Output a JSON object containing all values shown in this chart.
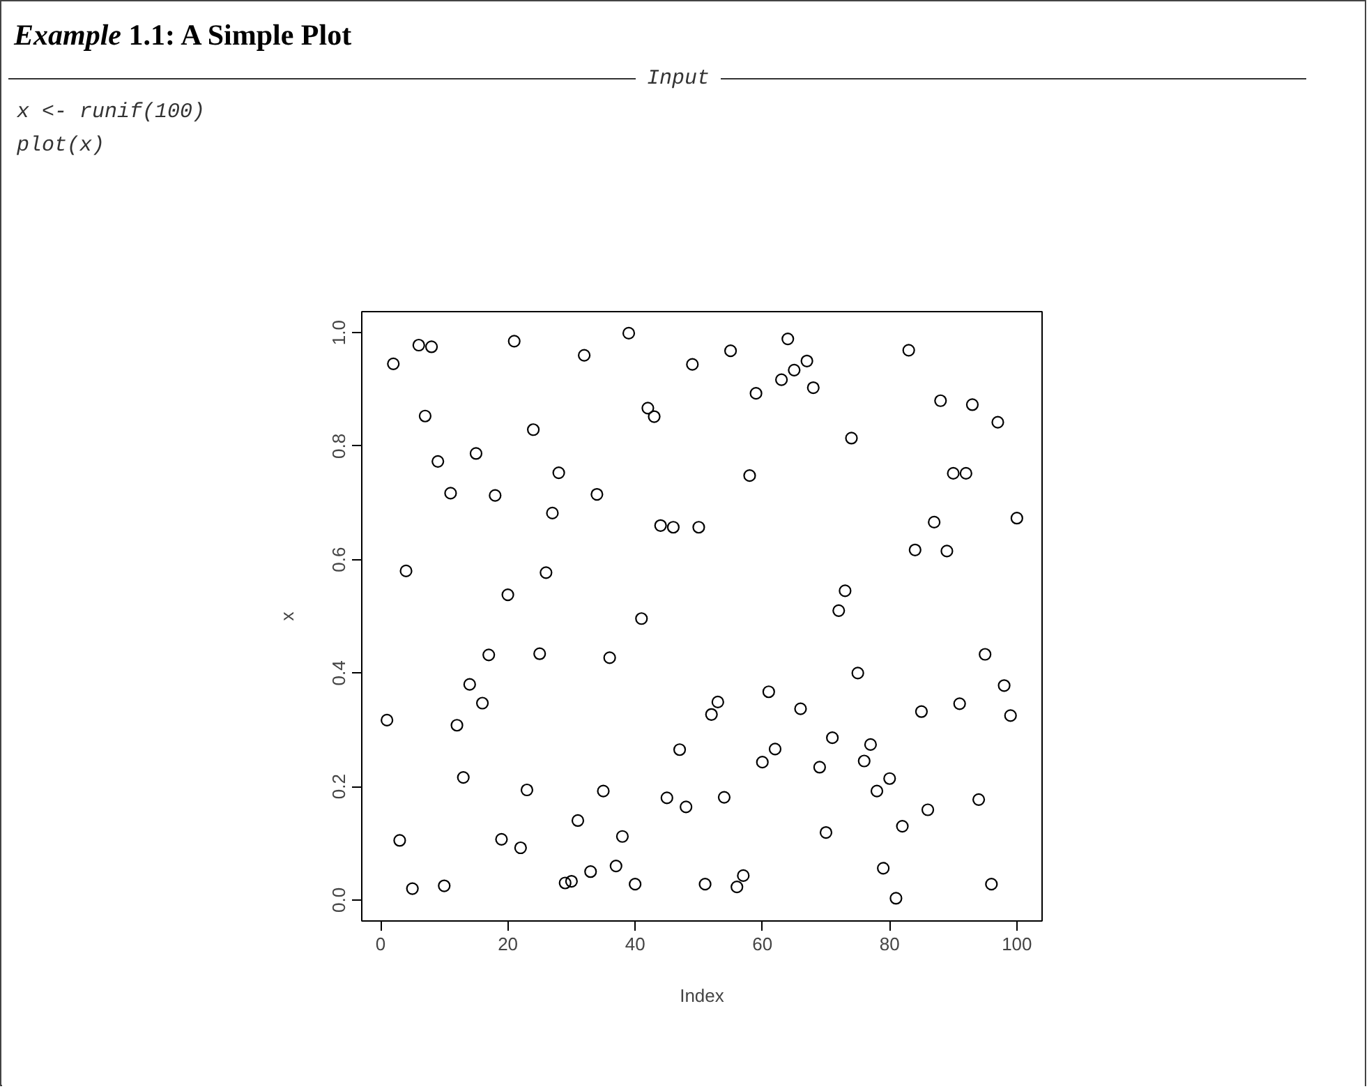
{
  "chart_data": {
    "type": "scatter",
    "title": "Example 1.1: A Simple Plot",
    "annotations": [
      "Input",
      "x <- runif(100)",
      "plot(x)"
    ],
    "xlabel": "Index",
    "ylabel": "x",
    "x": [
      1,
      2,
      3,
      4,
      5,
      6,
      7,
      8,
      9,
      10,
      11,
      12,
      13,
      14,
      15,
      16,
      17,
      18,
      19,
      20,
      21,
      22,
      23,
      24,
      25,
      26,
      27,
      28,
      29,
      30,
      31,
      32,
      33,
      34,
      35,
      36,
      37,
      38,
      39,
      40,
      41,
      42,
      43,
      44,
      45,
      46,
      47,
      48,
      49,
      50,
      51,
      52,
      53,
      54,
      55,
      56,
      57,
      58,
      59,
      60,
      61,
      62,
      63,
      64,
      65,
      66,
      67,
      68,
      69,
      70,
      71,
      72,
      73,
      74,
      75,
      76,
      77,
      78,
      79,
      80,
      81,
      82,
      83,
      84,
      85,
      86,
      87,
      88,
      89,
      90,
      91,
      92,
      93,
      94,
      95,
      96,
      97,
      98,
      99,
      100
    ],
    "series": [
      {
        "color": "#000000",
        "values": [
          0.317,
          0.945,
          0.105,
          0.58,
          0.02,
          0.978,
          0.853,
          0.975,
          0.773,
          0.025,
          0.717,
          0.308,
          0.216,
          0.38,
          0.787,
          0.347,
          0.432,
          0.713,
          0.107,
          0.538,
          0.985,
          0.092,
          0.194,
          0.829,
          0.434,
          0.577,
          0.682,
          0.753,
          0.03,
          0.033,
          0.14,
          0.96,
          0.05,
          0.715,
          0.192,
          0.427,
          0.06,
          0.112,
          0.999,
          0.028,
          0.496,
          0.867,
          0.852,
          0.66,
          0.18,
          0.657,
          0.265,
          0.164,
          0.944,
          0.657,
          0.028,
          0.327,
          0.349,
          0.181,
          0.968,
          0.023,
          0.043,
          0.748,
          0.893,
          0.243,
          0.367,
          0.266,
          0.917,
          0.989,
          0.934,
          0.337,
          0.95,
          0.903,
          0.234,
          0.119,
          0.286,
          0.51,
          0.545,
          0.814,
          0.4,
          0.245,
          0.274,
          0.192,
          0.056,
          0.214,
          0.003,
          0.13,
          0.969,
          0.617,
          0.332,
          0.159,
          0.666,
          0.88,
          0.615,
          0.752,
          0.346,
          0.752,
          0.873,
          0.177,
          0.433,
          0.028,
          0.842,
          0.378,
          0.325,
          0.673
        ]
      }
    ],
    "xlim": [
      -2.96,
      103.96
    ],
    "ylim": [
      -0.037,
      1.037
    ],
    "xticks": [
      0,
      20,
      40,
      60,
      80,
      100
    ],
    "yticks": [
      {
        "value": 0,
        "label": "0.0"
      },
      {
        "value": 0.2,
        "label": "0.2"
      },
      {
        "value": 0.4,
        "label": "0.4"
      },
      {
        "value": 0.6,
        "label": "0.6"
      },
      {
        "value": 0.8,
        "label": "0.8"
      },
      {
        "value": 1,
        "label": "1.0"
      }
    ],
    "grid": false,
    "marker": "circle"
  }
}
